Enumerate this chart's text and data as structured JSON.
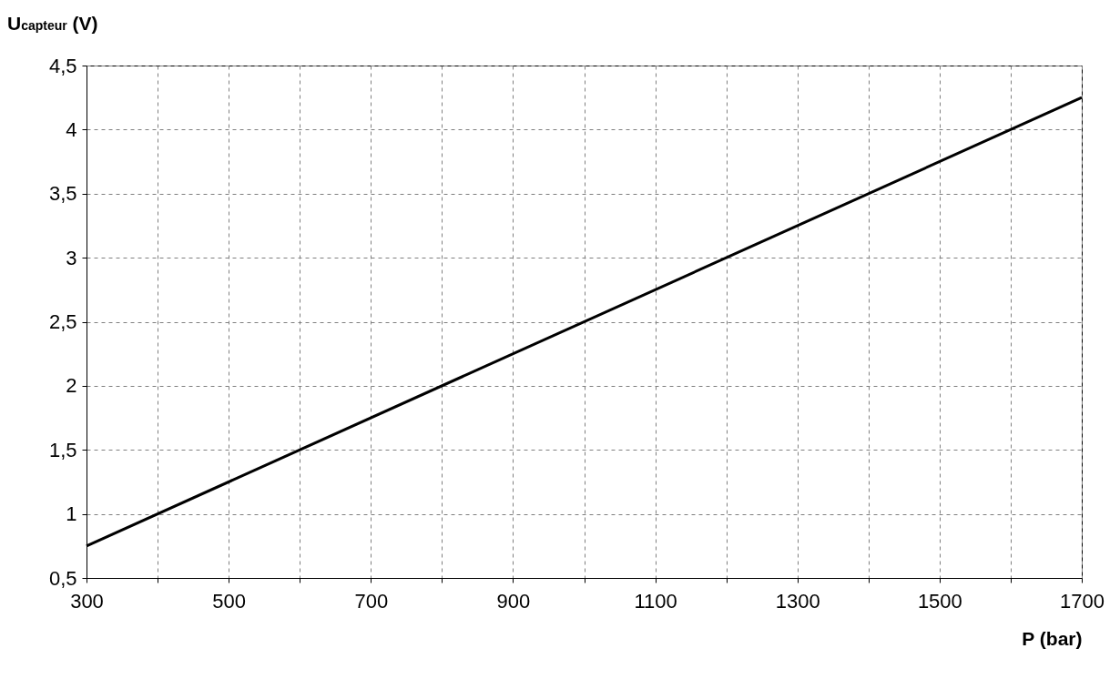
{
  "chart_data": {
    "type": "line",
    "xlabel": "P (bar)",
    "ylabel": "U$_{capteur}$ (V)",
    "series": [
      {
        "color": "#000000",
        "x": [
          300,
          1700
        ],
        "values": [
          0.75,
          4.25
        ]
      }
    ],
    "xlim": [
      300,
      1700
    ],
    "ylim": [
      0.5,
      4.5
    ],
    "xticks": [
      300,
      {
        "value": 400,
        "label": null
      },
      500,
      {
        "value": 600,
        "label": null
      },
      700,
      {
        "value": 800,
        "label": null
      },
      900,
      {
        "value": 1000,
        "label": null
      },
      1100,
      {
        "value": 1200,
        "label": null
      },
      1300,
      {
        "value": 1400,
        "label": null
      },
      1500,
      {
        "value": 1600,
        "label": null
      },
      1700
    ],
    "yticks": [
      {
        "value": 0.5,
        "label": "0,5"
      },
      1,
      {
        "value": 1.5,
        "label": "1,5"
      },
      2,
      {
        "value": 2.5,
        "label": "2,5"
      },
      3,
      {
        "value": 3.5,
        "label": "3,5"
      },
      4,
      {
        "value": 4.5,
        "label": "4,5"
      }
    ],
    "grid": true,
    "marker": "none",
    "line_style": "solid"
  }
}
